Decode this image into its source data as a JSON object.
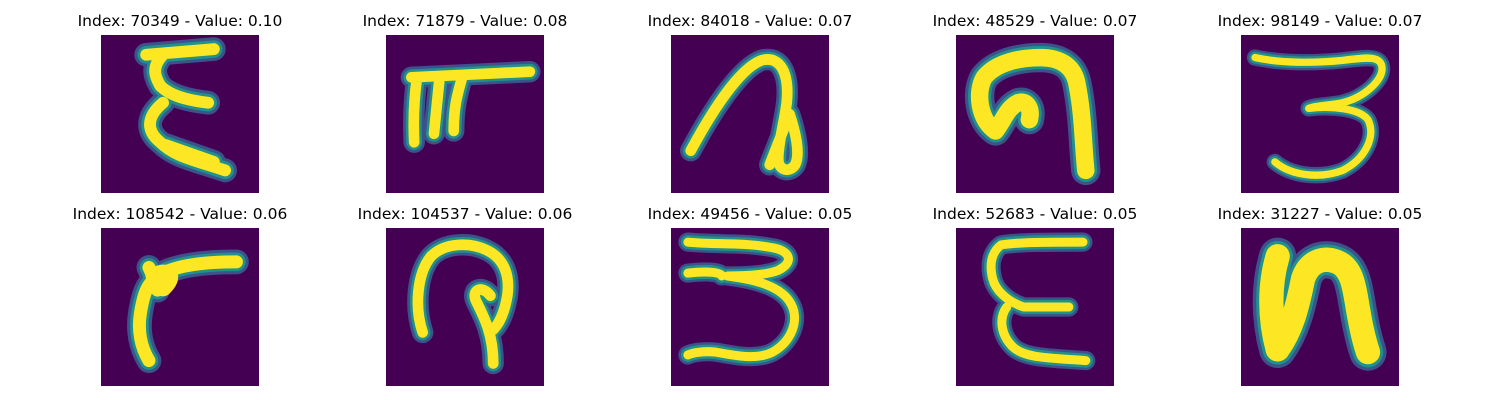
{
  "colors": {
    "background": "#440154",
    "stroke_core": "#fde725",
    "stroke_mid": "#21918c",
    "stroke_edge": "#3b528b"
  },
  "panels": [
    {
      "index": "70349",
      "value": "0.10",
      "title": "Index: 70349 - Value: 0.10",
      "glyph": "E-like"
    },
    {
      "index": "71879",
      "value": "0.08",
      "title": "Index: 71879 - Value: 0.08",
      "glyph": "T-bar"
    },
    {
      "index": "84018",
      "value": "0.07",
      "title": "Index: 84018 - Value: 0.07",
      "glyph": "loop"
    },
    {
      "index": "48529",
      "value": "0.07",
      "title": "Index: 48529 - Value: 0.07",
      "glyph": "hook"
    },
    {
      "index": "98149",
      "value": "0.07",
      "title": "Index: 98149 - Value: 0.07",
      "glyph": "3"
    },
    {
      "index": "108542",
      "value": "0.06",
      "title": "Index: 108542 - Value: 0.06",
      "glyph": "r"
    },
    {
      "index": "104537",
      "value": "0.06",
      "title": "Index: 104537 - Value: 0.06",
      "glyph": "P-hook"
    },
    {
      "index": "49456",
      "value": "0.05",
      "title": "Index: 49456 - Value: 0.05",
      "glyph": "3"
    },
    {
      "index": "52683",
      "value": "0.05",
      "title": "Index: 52683 - Value: 0.05",
      "glyph": "E"
    },
    {
      "index": "31227",
      "value": "0.05",
      "title": "Index: 31227 - Value: 0.05",
      "glyph": "N"
    }
  ]
}
